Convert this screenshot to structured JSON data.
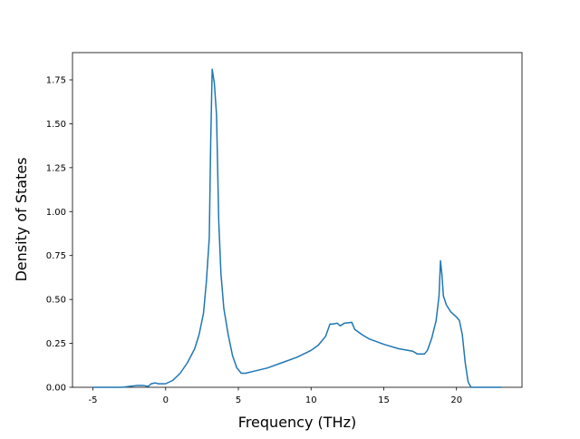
{
  "chart_data": {
    "type": "line",
    "x_label": "Frequency (THz)",
    "y_label": "Density of States",
    "x": [
      -5,
      -4,
      -3,
      -2.5,
      -2,
      -1.5,
      -1.2,
      -1,
      -0.7,
      -0.5,
      0,
      0.5,
      1,
      1.5,
      2,
      2.3,
      2.6,
      2.8,
      3.0,
      3.1,
      3.2,
      3.35,
      3.5,
      3.65,
      3.8,
      4.0,
      4.3,
      4.6,
      4.9,
      5.2,
      5.5,
      6,
      7,
      8,
      9,
      10,
      10.5,
      11,
      11.3,
      11.5,
      11.8,
      12,
      12.3,
      12.8,
      13,
      13.5,
      14,
      15,
      16,
      17,
      17.3,
      17.5,
      17.8,
      18,
      18.3,
      18.6,
      18.8,
      18.9,
      19.0,
      19.1,
      19.3,
      19.6,
      20,
      20.2,
      20.4,
      20.6,
      20.8,
      21,
      22,
      23.1
    ],
    "series": [
      {
        "color": "#1f77b4",
        "values": [
          0,
          0,
          0,
          0.005,
          0.01,
          0.01,
          0.005,
          0.02,
          0.025,
          0.02,
          0.02,
          0.04,
          0.08,
          0.14,
          0.22,
          0.3,
          0.42,
          0.6,
          0.85,
          1.4,
          1.81,
          1.73,
          1.55,
          0.95,
          0.65,
          0.45,
          0.3,
          0.18,
          0.11,
          0.08,
          0.08,
          0.09,
          0.11,
          0.14,
          0.17,
          0.21,
          0.24,
          0.29,
          0.36,
          0.36,
          0.365,
          0.35,
          0.365,
          0.37,
          0.33,
          0.3,
          0.275,
          0.245,
          0.22,
          0.205,
          0.19,
          0.19,
          0.19,
          0.21,
          0.28,
          0.38,
          0.52,
          0.72,
          0.64,
          0.52,
          0.47,
          0.43,
          0.4,
          0.38,
          0.3,
          0.14,
          0.03,
          0,
          0,
          0
        ]
      }
    ],
    "xlim": [
      -6.405,
      24.505
    ],
    "ylim": [
      0,
      1.905
    ],
    "xticks": [
      -5,
      0,
      5,
      10,
      15,
      20
    ],
    "yticks": [
      {
        "value": 0,
        "label": "0.00"
      },
      {
        "value": 0.25,
        "label": "0.25"
      },
      {
        "value": 0.5,
        "label": "0.50"
      },
      {
        "value": 0.75,
        "label": "0.75"
      },
      {
        "value": 1,
        "label": "1.00"
      },
      {
        "value": 1.25,
        "label": "1.25"
      },
      {
        "value": 1.5,
        "label": "1.50"
      },
      {
        "value": 1.75,
        "label": "1.75"
      }
    ],
    "grid": false
  }
}
